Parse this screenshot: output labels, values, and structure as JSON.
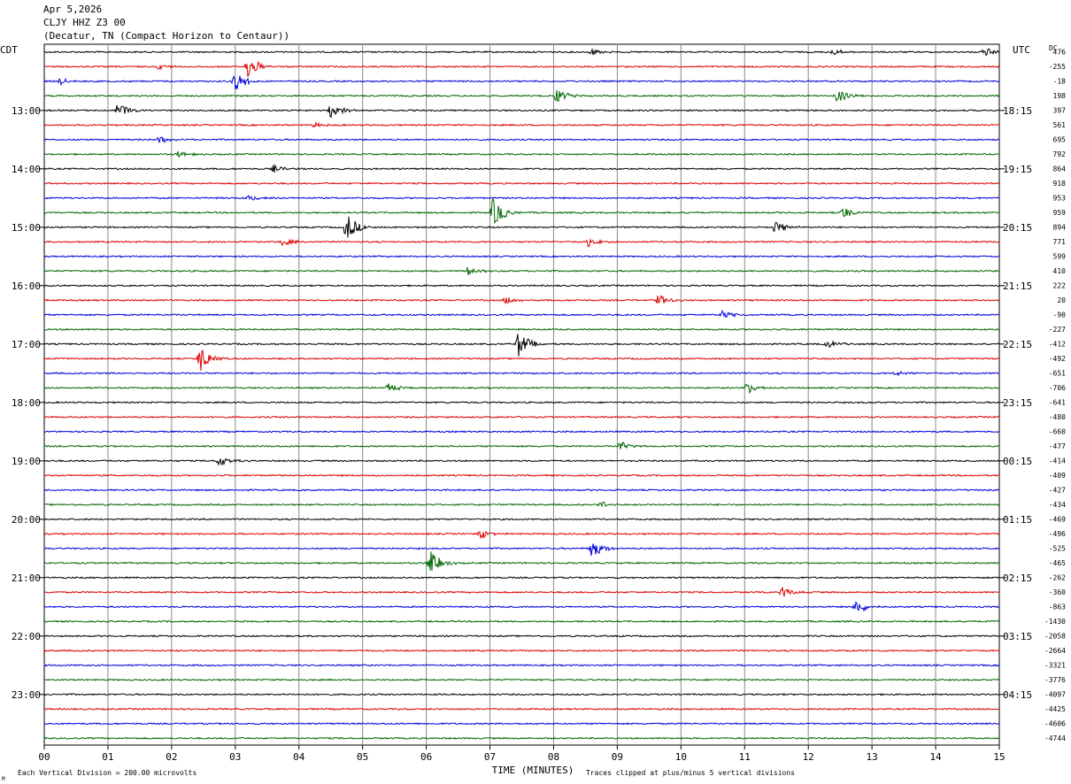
{
  "header": {
    "date": "Apr 5,2026",
    "station": "CLJY HHZ Z3 00",
    "location": "(Decatur, TN (Compact Horizon to Centaur))"
  },
  "labels": {
    "left_zone": "CDT",
    "right_zone": "UTC",
    "dc_label": "DC",
    "x_axis": "TIME (MINUTES)",
    "footer_left": "Each Vertical Division =  200.00 microvolts",
    "footer_right": "Traces clipped at plus/minus 5 vertical divisions",
    "corner_mark": "M"
  },
  "colors": {
    "trace_cycle": [
      "#000000",
      "#dd0000",
      "#0000dd",
      "#006600"
    ],
    "grid": "#888888"
  },
  "chart_data": {
    "type": "line",
    "title": "CLJY HHZ Z3 00",
    "xlabel": "TIME (MINUTES)",
    "x_range": [
      0,
      15
    ],
    "x_ticks": [
      "00",
      "01",
      "02",
      "03",
      "04",
      "05",
      "06",
      "07",
      "08",
      "09",
      "10",
      "11",
      "12",
      "13",
      "14",
      "15"
    ],
    "left_time_labels": [
      "13:00",
      "14:00",
      "15:00",
      "16:00",
      "17:00",
      "18:00",
      "19:00",
      "20:00",
      "21:00",
      "22:00",
      "23:00"
    ],
    "right_time_labels": [
      "18:15",
      "19:15",
      "20:15",
      "21:15",
      "22:15",
      "23:15",
      "00:15",
      "01:15",
      "02:15",
      "03:15",
      "04:15"
    ],
    "first_hour_label_row": 4,
    "dc_offsets": [
      "476",
      "-255",
      "-18",
      "198",
      "397",
      "561",
      "695",
      "792",
      "864",
      "918",
      "953",
      "959",
      "894",
      "771",
      "599",
      "410",
      "222",
      "20",
      "-90",
      "-227",
      "-412",
      "-492",
      "-651",
      "-706",
      "-641",
      "-480",
      "-660",
      "-477",
      "-414",
      "-409",
      "-427",
      "-434",
      "-469",
      "-496",
      "-525",
      "-465",
      "-262",
      "-360",
      "-863",
      "-1430",
      "-2058",
      "-2664",
      "-3321",
      "-3776",
      "-4097",
      "-4425",
      "-4606",
      "-4744"
    ],
    "trace_count": 48,
    "minutes_per_trace": 15,
    "vertical_division_microvolts": 200,
    "events": [
      {
        "trace": 0,
        "minute": 14.75,
        "amp": 6
      },
      {
        "trace": 0,
        "minute": 8.6,
        "amp": 4
      },
      {
        "trace": 0,
        "minute": 12.4,
        "amp": 4
      },
      {
        "trace": 1,
        "minute": 3.2,
        "amp": 14
      },
      {
        "trace": 1,
        "minute": 1.8,
        "amp": 4
      },
      {
        "trace": 2,
        "minute": 3.0,
        "amp": 12
      },
      {
        "trace": 2,
        "minute": 0.25,
        "amp": 4
      },
      {
        "trace": 3,
        "minute": 8.05,
        "amp": 9
      },
      {
        "trace": 3,
        "minute": 12.45,
        "amp": 9
      },
      {
        "trace": 4,
        "minute": 1.15,
        "amp": 10
      },
      {
        "trace": 4,
        "minute": 4.5,
        "amp": 9
      },
      {
        "trace": 5,
        "minute": 4.2,
        "amp": 4
      },
      {
        "trace": 6,
        "minute": 1.8,
        "amp": 4
      },
      {
        "trace": 7,
        "minute": 2.1,
        "amp": 4
      },
      {
        "trace": 8,
        "minute": 3.6,
        "amp": 4
      },
      {
        "trace": 10,
        "minute": 3.2,
        "amp": 4
      },
      {
        "trace": 11,
        "minute": 7.05,
        "amp": 18
      },
      {
        "trace": 11,
        "minute": 12.55,
        "amp": 7
      },
      {
        "trace": 12,
        "minute": 4.75,
        "amp": 16
      },
      {
        "trace": 12,
        "minute": 11.45,
        "amp": 10
      },
      {
        "trace": 13,
        "minute": 3.75,
        "amp": 5
      },
      {
        "trace": 13,
        "minute": 8.55,
        "amp": 5
      },
      {
        "trace": 15,
        "minute": 6.65,
        "amp": 5
      },
      {
        "trace": 17,
        "minute": 7.25,
        "amp": 5
      },
      {
        "trace": 17,
        "minute": 9.65,
        "amp": 7
      },
      {
        "trace": 18,
        "minute": 10.65,
        "amp": 5
      },
      {
        "trace": 20,
        "minute": 7.45,
        "amp": 16
      },
      {
        "trace": 20,
        "minute": 12.3,
        "amp": 5
      },
      {
        "trace": 21,
        "minute": 2.45,
        "amp": 16
      },
      {
        "trace": 22,
        "minute": 13.35,
        "amp": 4
      },
      {
        "trace": 23,
        "minute": 5.4,
        "amp": 6
      },
      {
        "trace": 23,
        "minute": 11.05,
        "amp": 7
      },
      {
        "trace": 27,
        "minute": 9.05,
        "amp": 6
      },
      {
        "trace": 28,
        "minute": 2.75,
        "amp": 7
      },
      {
        "trace": 31,
        "minute": 8.75,
        "amp": 4
      },
      {
        "trace": 33,
        "minute": 6.85,
        "amp": 6
      },
      {
        "trace": 34,
        "minute": 8.6,
        "amp": 11
      },
      {
        "trace": 35,
        "minute": 6.05,
        "amp": 16
      },
      {
        "trace": 37,
        "minute": 11.6,
        "amp": 7
      },
      {
        "trace": 38,
        "minute": 12.75,
        "amp": 9
      }
    ]
  }
}
